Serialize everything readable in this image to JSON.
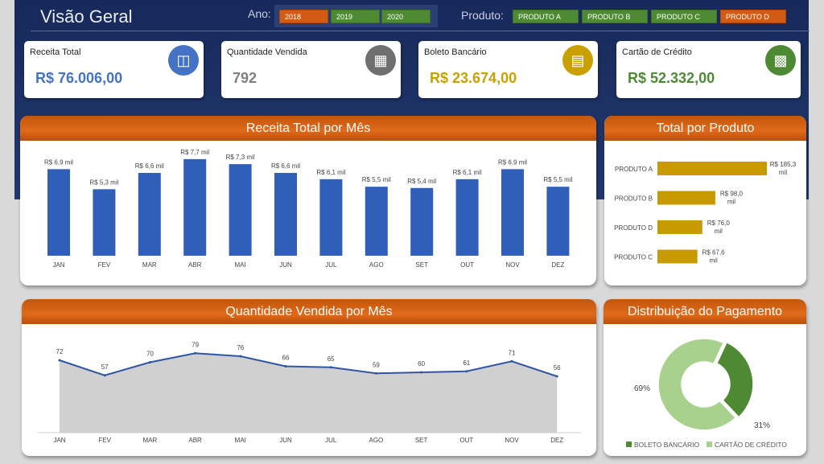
{
  "header": {
    "title": "Visão Geral",
    "year_label": "Ano:",
    "product_label": "Produto:",
    "years": [
      {
        "label": "2018",
        "selected": true
      },
      {
        "label": "2019",
        "selected": false
      },
      {
        "label": "2020",
        "selected": false
      }
    ],
    "products": [
      {
        "label": "PRODUTO A",
        "selected": false
      },
      {
        "label": "PRODUTO B",
        "selected": false
      },
      {
        "label": "PRODUTO C",
        "selected": false
      },
      {
        "label": "PRODUTO D",
        "selected": true
      }
    ]
  },
  "kpis": [
    {
      "title": "Receita Total",
      "value": "R$ 76.006,00",
      "color": "#4472c4",
      "icon": "database-icon"
    },
    {
      "title": "Quantidade Vendida",
      "value": "792",
      "color": "#7f7f7f",
      "icon": "chart-grid-icon"
    },
    {
      "title": "Boleto Bancário",
      "value": "R$ 23.674,00",
      "color": "#c9a000",
      "icon": "document-icon"
    },
    {
      "title": "Cartão de Crédito",
      "value": "R$ 52.332,00",
      "color": "#4e8a34",
      "icon": "credit-card-icon"
    }
  ],
  "panels": {
    "receita_mes": "Receita Total por Mês",
    "total_produto": "Total por Produto",
    "qtd_mes": "Quantidade Vendida por Mês",
    "pagamento": "Distribuição do Pagamento"
  },
  "chart_data": [
    {
      "type": "bar",
      "title": "Receita Total por Mês",
      "categories": [
        "JAN",
        "FEV",
        "MAR",
        "ABR",
        "MAI",
        "JUN",
        "JUL",
        "AGO",
        "SET",
        "OUT",
        "NOV",
        "DEZ"
      ],
      "values": [
        6.9,
        5.3,
        6.6,
        7.7,
        7.3,
        6.6,
        6.1,
        5.5,
        5.4,
        6.1,
        6.9,
        5.5
      ],
      "labels": [
        "R$ 6,9 mil",
        "R$ 5,3 mil",
        "R$ 6,6 mil",
        "R$ 7,7 mil",
        "R$ 7,3 mil",
        "R$ 6,6 mil",
        "R$ 6,1 mil",
        "R$ 5,5 mil",
        "R$ 5,4 mil",
        "R$ 6,1 mil",
        "R$ 6,9 mil",
        "R$ 5,5 mil"
      ],
      "color": "#2f5fb8"
    },
    {
      "type": "bar",
      "orientation": "horizontal",
      "title": "Total por Produto",
      "categories": [
        "PRODUTO A",
        "PRODUTO B",
        "PRODUTO D",
        "PRODUTO C"
      ],
      "values": [
        185.3,
        98.0,
        76.0,
        67.6
      ],
      "labels": [
        [
          "R$ 185,3",
          "mil"
        ],
        [
          "R$ 98,0",
          "mil"
        ],
        [
          "R$ 76,0",
          "mil"
        ],
        [
          "R$ 67,6",
          "mil"
        ]
      ],
      "color": "#c99a00"
    },
    {
      "type": "area",
      "title": "Quantidade Vendida por Mês",
      "categories": [
        "JAN",
        "FEV",
        "MAR",
        "ABR",
        "MAI",
        "JUN",
        "JUL",
        "AGO",
        "SET",
        "OUT",
        "NOV",
        "DEZ"
      ],
      "values": [
        72,
        57,
        70,
        79,
        76,
        66,
        65,
        59,
        60,
        61,
        71,
        56
      ],
      "color": "#2f55a4"
    },
    {
      "type": "pie",
      "title": "Distribuição do Pagamento",
      "categories": [
        "BOLETO BANCÁRIO",
        "CARTÃO DE CRÉDITO"
      ],
      "values": [
        31,
        69
      ],
      "labels": [
        "31%",
        "69%"
      ],
      "colors": [
        "#4e8a34",
        "#a9d18e"
      ]
    }
  ]
}
